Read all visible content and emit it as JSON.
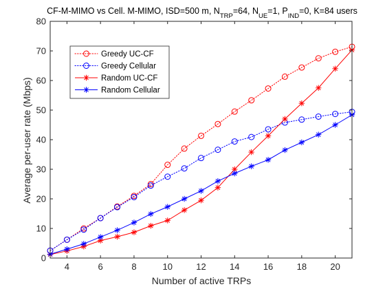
{
  "chart_data": {
    "type": "line",
    "title": "CF-M-MIMO vs Cell. M-MIMO, ISD=500 m, N_TRP=64, N_UE=1, P_IND=0, K=84 users",
    "title_parts": {
      "lead": "CF-M-MIMO vs Cell. M-MIMO, ISD=500 m, N",
      "sub_trp": "TRP",
      "eq64": "=64, N",
      "sub_ue": "UE",
      "eq1": "=1, P",
      "sub_ind": "IND",
      "tail": "=0, K=84 users"
    },
    "xlabel": "Number of active TRPs",
    "ylabel": "Average per-user rate (Mbps)",
    "xlim": [
      3,
      21
    ],
    "ylim": [
      0,
      80
    ],
    "xticks": [
      4,
      6,
      8,
      10,
      12,
      14,
      16,
      18,
      20
    ],
    "yticks": [
      0,
      10,
      20,
      30,
      40,
      50,
      60,
      70,
      80
    ],
    "grid": false,
    "legend_position": "upper-left",
    "x": [
      3,
      4,
      5,
      6,
      7,
      8,
      9,
      10,
      11,
      12,
      13,
      14,
      15,
      16,
      17,
      18,
      19,
      20,
      21
    ],
    "series": [
      {
        "name": "Greedy UC-CF",
        "color": "#ff0000",
        "line_style": "dotted",
        "marker": "circle",
        "values": [
          2.5,
          6.2,
          10.0,
          13.5,
          17.4,
          21.0,
          25.0,
          31.5,
          37.0,
          41.3,
          45.3,
          49.5,
          53.3,
          57.3,
          61.3,
          64.4,
          67.5,
          69.7,
          71.4
        ]
      },
      {
        "name": "Greedy Cellular",
        "color": "#0000ff",
        "line_style": "dotted",
        "marker": "circle",
        "values": [
          2.5,
          6.2,
          9.6,
          13.5,
          17.2,
          20.6,
          24.5,
          27.5,
          30.3,
          33.8,
          36.6,
          39.4,
          40.9,
          43.5,
          45.8,
          46.8,
          47.8,
          48.7,
          49.4
        ]
      },
      {
        "name": "Random UC-CF",
        "color": "#ff0000",
        "line_style": "solid",
        "marker": "asterisk",
        "values": [
          1.2,
          2.4,
          3.9,
          5.9,
          7.2,
          8.7,
          10.9,
          12.7,
          16.2,
          19.5,
          23.8,
          30.0,
          35.8,
          41.3,
          47.0,
          52.3,
          57.5,
          64.0,
          70.3
        ]
      },
      {
        "name": "Random Cellular",
        "color": "#0000ff",
        "line_style": "solid",
        "marker": "asterisk",
        "values": [
          1.3,
          3.0,
          4.8,
          7.1,
          9.4,
          12.0,
          14.9,
          17.3,
          20.0,
          22.7,
          26.0,
          28.6,
          31.0,
          33.2,
          36.5,
          39.1,
          41.7,
          45.0,
          48.4
        ]
      }
    ]
  }
}
